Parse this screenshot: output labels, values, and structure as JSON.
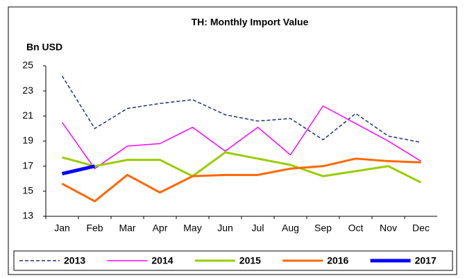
{
  "chart_data": {
    "type": "line",
    "title": "TH: Monthly Import Value",
    "y_label": "Bn USD",
    "categories": [
      "Jan",
      "Feb",
      "Mar",
      "Apr",
      "May",
      "Jun",
      "Jul",
      "Aug",
      "Sep",
      "Oct",
      "Nov",
      "Dec"
    ],
    "ylim": [
      13,
      25
    ],
    "yticks": [
      13,
      15,
      17,
      19,
      21,
      23,
      25
    ],
    "grid": false,
    "legend": "bottom",
    "series": [
      {
        "name": "2013",
        "color": "#1f2f7a",
        "dashed": true,
        "linewidth": 1.5,
        "values": [
          24.2,
          20.0,
          21.6,
          22.0,
          22.3,
          21.1,
          20.6,
          20.8,
          19.1,
          21.2,
          19.4,
          18.9
        ]
      },
      {
        "name": "2014",
        "color": "#ff00ff",
        "dashed": false,
        "linewidth": 1.5,
        "values": [
          20.5,
          16.8,
          18.6,
          18.8,
          20.1,
          18.2,
          20.1,
          17.9,
          21.8,
          20.4,
          19.0,
          17.4
        ]
      },
      {
        "name": "2015",
        "color": "#99cc00",
        "dashed": false,
        "linewidth": 3,
        "values": [
          17.7,
          17.0,
          17.5,
          17.5,
          16.2,
          18.1,
          17.6,
          17.1,
          16.2,
          16.6,
          17.0,
          15.7
        ]
      },
      {
        "name": "2016",
        "color": "#ff6600",
        "dashed": false,
        "linewidth": 3,
        "values": [
          15.6,
          14.2,
          16.3,
          14.9,
          16.2,
          16.3,
          16.3,
          16.8,
          17.0,
          17.6,
          17.4,
          17.3
        ]
      },
      {
        "name": "2017",
        "color": "#0000ff",
        "dashed": false,
        "linewidth": 5,
        "values": [
          16.4,
          17.0,
          null,
          null,
          null,
          null,
          null,
          null,
          null,
          null,
          null,
          null
        ]
      }
    ]
  }
}
